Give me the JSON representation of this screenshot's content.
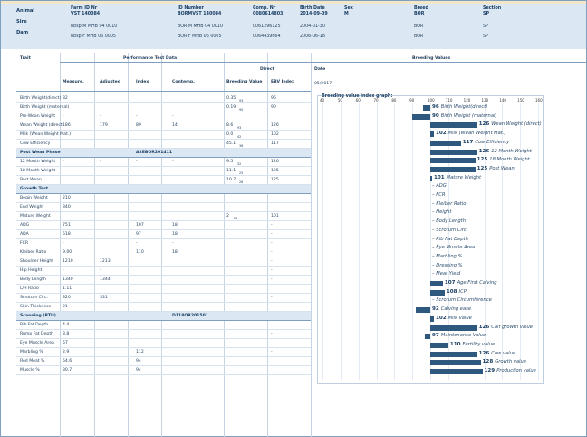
{
  "header": {
    "cols": [
      {
        "label": "Farm ID Nr",
        "value": "VST 140084"
      },
      {
        "label": "ID Number",
        "value": "BORMVST 140084"
      },
      {
        "label": "Comp. Nr",
        "value": "0080614803"
      },
      {
        "label": "Birth Date",
        "value": "2014-09-09"
      },
      {
        "label": "Sex",
        "value": "M"
      },
      {
        "label": "Breed",
        "value": "BOR"
      },
      {
        "label": "Section",
        "value": "SP"
      }
    ],
    "row_labels": [
      "Animal",
      "Sire",
      "Dam"
    ],
    "sire": {
      "farm_id": "nbsp;M MHB 04 0010",
      "id_number": "BOR M MHB 04 0010",
      "comp_nr": "0061296125",
      "birth_date": "2004-01-30",
      "breed": "BOR",
      "section": "SP"
    },
    "dam": {
      "farm_id": "nbsp;F MHB 06 0005",
      "id_number": "BOR F MHB 06 0005",
      "comp_nr": "0064439664",
      "birth_date": "2006-06-18",
      "breed": "BOR",
      "section": "SP"
    }
  },
  "table": {
    "trait_h": "Trait",
    "perf_h": "Performance Test Data",
    "bv_h": "Breeding Values",
    "direct_h": "Direct",
    "date_h": "Date",
    "date_val": "05/2017",
    "cols": [
      "Measure.",
      "Adjusted",
      "Index",
      "Contemp.",
      "Breeding Value",
      "EBV Index"
    ],
    "rows": [
      {
        "t": "Birth Weight(direct)",
        "m": "32",
        "a": "",
        "i": "",
        "c": "",
        "bv": "0.35",
        "acc": "93",
        "e": "96"
      },
      {
        "t": "Birth Weight (maternal)",
        "m": "",
        "a": "",
        "i": "",
        "c": "",
        "bv": "0.19",
        "acc": "90",
        "e": "90"
      },
      {
        "t": "Pre-Wean Weight",
        "m": "-",
        "a": "-",
        "i": "-",
        "c": "-",
        "bv": "",
        "acc": "",
        "e": ""
      },
      {
        "t": "Wean Weight (direct)",
        "m": "186",
        "a": "179",
        "i": "89",
        "c": "14",
        "bv": "8.6",
        "acc": "93",
        "e": "126"
      },
      {
        "t": "Milk (Wean Weight Mat.)",
        "m": "",
        "a": "",
        "i": "",
        "c": "",
        "bv": "0.0",
        "acc": "42",
        "e": "102"
      },
      {
        "t": "Cow Efficiency",
        "m": "",
        "a": "",
        "i": "",
        "c": "",
        "bv": "45.1",
        "acc": "36",
        "e": "117"
      }
    ],
    "sec1": "Post Wean Phase",
    "sec1code": "A2EBOR201411",
    "rows2": [
      {
        "t": "12 Month Weight",
        "m": "-",
        "a": "-",
        "i": "-",
        "c": "-",
        "bv": "9.5",
        "acc": "32",
        "e": "126"
      },
      {
        "t": "18 Month Weight",
        "m": "-",
        "a": "-",
        "i": "-",
        "c": "-",
        "bv": "11.1",
        "acc": "25",
        "e": "125"
      },
      {
        "t": "Post Wean",
        "m": "",
        "a": "",
        "i": "",
        "c": "",
        "bv": "10.7",
        "acc": "28",
        "e": "125"
      }
    ],
    "sec2": "Growth Test",
    "rows3": [
      {
        "t": "Begin Weight",
        "m": "210",
        "a": "",
        "i": "",
        "c": "",
        "bv": "",
        "acc": "",
        "e": ""
      },
      {
        "t": "End Weight",
        "m": "340",
        "a": "",
        "i": "",
        "c": "",
        "bv": "",
        "acc": "",
        "e": ""
      },
      {
        "t": "Mature Weight",
        "m": "",
        "a": "",
        "i": "",
        "c": "",
        "bv": "2",
        "acc": "23",
        "e": "101"
      },
      {
        "t": "ADG",
        "m": "751",
        "a": "",
        "i": "107",
        "c": "18",
        "bv": "",
        "acc": "",
        "e": "-"
      },
      {
        "t": "ADA",
        "m": "518",
        "a": "",
        "i": "97",
        "c": "18",
        "bv": "",
        "acc": "",
        "e": "-"
      },
      {
        "t": "FCR",
        "m": "-",
        "a": "",
        "i": "-",
        "c": "-",
        "bv": "",
        "acc": "",
        "e": "-"
      },
      {
        "t": "Kleiber Ratio",
        "m": "9.00",
        "a": "",
        "i": "110",
        "c": "18",
        "bv": "",
        "acc": "",
        "e": "-"
      },
      {
        "t": "Shoulder Height",
        "m": "1210",
        "a": "1213",
        "i": "",
        "c": "",
        "bv": "",
        "acc": "",
        "e": "-"
      },
      {
        "t": "Hip Height",
        "m": "-",
        "a": "-",
        "i": "",
        "c": "",
        "bv": "",
        "acc": "",
        "e": "-"
      },
      {
        "t": "Body Length",
        "m": "1340",
        "a": "1344",
        "i": "",
        "c": "",
        "bv": "",
        "acc": "",
        "e": "-"
      },
      {
        "t": "L/H Ratio",
        "m": "1.11",
        "a": "",
        "i": "",
        "c": "",
        "bv": "",
        "acc": "",
        "e": ""
      },
      {
        "t": "Scrotum Circ.",
        "m": "320",
        "a": "331",
        "i": "",
        "c": "",
        "bv": "",
        "acc": "",
        "e": "-"
      },
      {
        "t": "Skin Thickness",
        "m": "21",
        "a": "",
        "i": "",
        "c": "",
        "bv": "",
        "acc": "",
        "e": ""
      }
    ],
    "sec3": "Scanning (RTU)",
    "sec3code": "D118OR201501",
    "rows4": [
      {
        "t": "Rib Fat Depth",
        "m": "4.4",
        "a": "",
        "i": "",
        "c": "",
        "bv": "",
        "acc": "",
        "e": ""
      },
      {
        "t": "Rump Fat Depth",
        "m": "3.8",
        "a": "",
        "i": "",
        "c": "",
        "bv": "",
        "acc": "",
        "e": "-"
      },
      {
        "t": "Eye Muscle Area",
        "m": "57",
        "a": "",
        "i": "",
        "c": "",
        "bv": "",
        "acc": "",
        "e": ""
      },
      {
        "t": "Marbling %",
        "m": "2.9",
        "a": "",
        "i": "112",
        "c": "",
        "bv": "",
        "acc": "",
        "e": "-"
      },
      {
        "t": "Red Meat %",
        "m": "54.6",
        "a": "",
        "i": "94",
        "c": "",
        "bv": "",
        "acc": "",
        "e": ""
      },
      {
        "t": "Muscle %",
        "m": "30.7",
        "a": "",
        "i": "94",
        "c": "",
        "bv": "",
        "acc": "",
        "e": ""
      }
    ]
  },
  "graph": {
    "title": "Breeding value index graph:",
    "ticks": [
      "40",
      "50",
      "60",
      "70",
      "80",
      "90",
      "100",
      "110",
      "120",
      "130",
      "140",
      "150",
      "160"
    ],
    "bars": [
      {
        "v": 96,
        "label": "Birth Weight(direct)"
      },
      {
        "v": 90,
        "label": "Birth Weight (maternal)"
      },
      {
        "v": 126,
        "label": "Wean Weight (direct)"
      },
      {
        "v": 102,
        "label": "Milk (Wean Weight Mat.)"
      },
      {
        "v": 117,
        "label": "Cow Efficiency"
      },
      {
        "v": 126,
        "label": "12 Month Weight"
      },
      {
        "v": 125,
        "label": "18 Month Weight"
      },
      {
        "v": 125,
        "label": "Post Wean"
      },
      {
        "v": 101,
        "label": "Mature Weight"
      },
      {
        "v": null,
        "label": "ADG"
      },
      {
        "v": null,
        "label": "FCR"
      },
      {
        "v": null,
        "label": "Kleiber Ratio"
      },
      {
        "v": null,
        "label": "Height"
      },
      {
        "v": null,
        "label": "Body Length"
      },
      {
        "v": null,
        "label": "Scrotum Circ."
      },
      {
        "v": null,
        "label": "Rib Fat Depth"
      },
      {
        "v": null,
        "label": "Eye Muscle Area"
      },
      {
        "v": null,
        "label": "Marbling %"
      },
      {
        "v": null,
        "label": "Dressing %"
      },
      {
        "v": null,
        "label": "Meat Yield"
      },
      {
        "v": 107,
        "label": "Age First Calving"
      },
      {
        "v": 108,
        "label": "ICP"
      },
      {
        "v": null,
        "label": "Scrotum Circumference"
      },
      {
        "v": 92,
        "label": "Calving ease"
      },
      {
        "v": 102,
        "label": "Milk value"
      },
      {
        "v": 126,
        "label": "Calf growth value"
      },
      {
        "v": 97,
        "label": "Maintenance Value"
      },
      {
        "v": 110,
        "label": "Fertility value"
      },
      {
        "v": 126,
        "label": "Cow value"
      },
      {
        "v": 128,
        "label": "Growth value"
      },
      {
        "v": 129,
        "label": "Production value"
      }
    ]
  },
  "colors": {
    "bar": "#2f587e",
    "header_bg": "#dbe7f3"
  }
}
